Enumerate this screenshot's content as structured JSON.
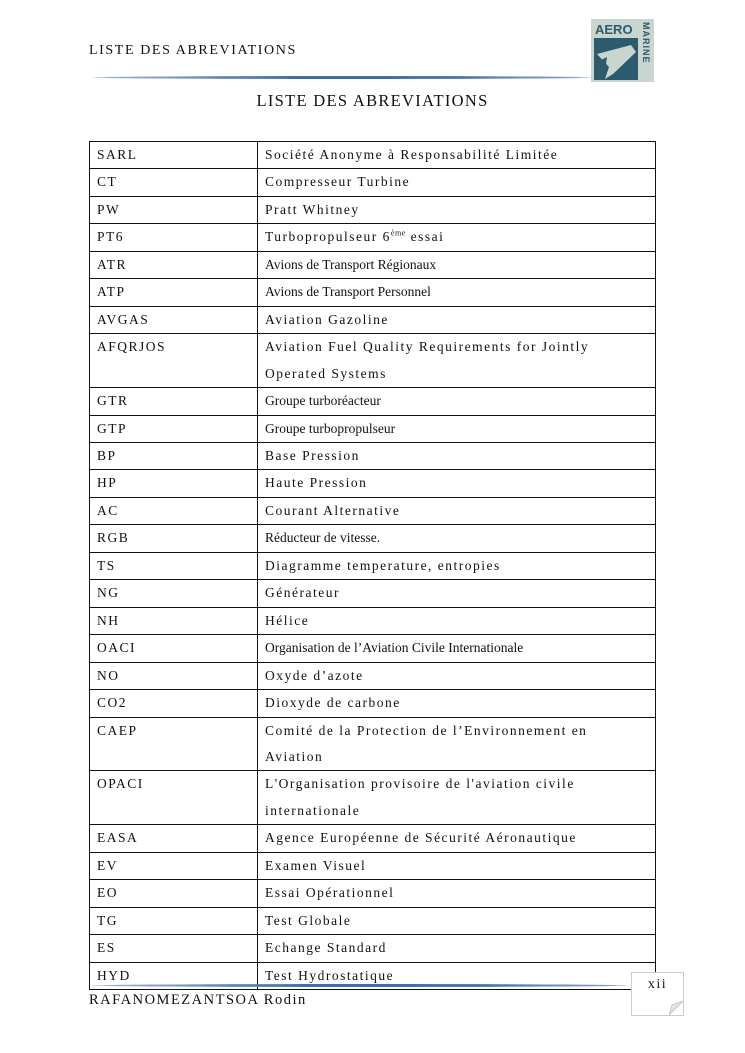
{
  "header": {
    "running_title": "LISTE DES ABREVIATIONS",
    "logo_text_top": "AERO",
    "logo_text_side": "MARINE"
  },
  "page_title": "LISTE DES ABREVIATIONS",
  "abbreviations": [
    {
      "abbr": "SARL",
      "def": "Société Anonyme à Responsabilité Limitée"
    },
    {
      "abbr": "CT",
      "def": "Compresseur Turbine"
    },
    {
      "abbr": "PW",
      "def": "Pratt Whitney"
    },
    {
      "abbr": "PT6",
      "def": "Turbopropulseur 6",
      "sup": "ème",
      "def_suffix": " essai"
    },
    {
      "abbr": "ATR",
      "def": "Avions de Transport Régionaux",
      "plain": true
    },
    {
      "abbr": "ATP",
      "def": "Avions de Transport Personnel",
      "plain": true
    },
    {
      "abbr": "AVGAS",
      "def": "Aviation Gazoline"
    },
    {
      "abbr": "AFQRJOS",
      "def": "Aviation Fuel Quality Requirements for Jointly",
      "def_line2": "Operated Systems"
    },
    {
      "abbr": "GTR",
      "def": "Groupe turboréacteur",
      "plain": true
    },
    {
      "abbr": "GTP",
      "def": "Groupe turbopropulseur",
      "plain": true
    },
    {
      "abbr": "BP",
      "def": "Base Pression"
    },
    {
      "abbr": "HP",
      "def": "Haute Pression"
    },
    {
      "abbr": "AC",
      "def": "Courant Alternative"
    },
    {
      "abbr": "RGB",
      "def": "Réducteur de vitesse.",
      "plain": true
    },
    {
      "abbr": "TS",
      "def": "Diagramme temperature, entropies"
    },
    {
      "abbr": "NG",
      "def": "Générateur"
    },
    {
      "abbr": "NH",
      "def": "Hélice"
    },
    {
      "abbr": "OACI",
      "def": "Organisation de l’Aviation Civile Internationale",
      "plain": true
    },
    {
      "abbr": "NO",
      "def": "Oxyde d’azote"
    },
    {
      "abbr": "CO2",
      "def": "Dioxyde de carbone"
    },
    {
      "abbr": "CAEP",
      "def": "Comité de la Protection de l’Environnement en",
      "def_line2": "Aviation"
    },
    {
      "abbr": "OPACI",
      "def": "L'Organisation provisoire de l'aviation civile",
      "def_line2": "internationale"
    },
    {
      "abbr": "EASA",
      "def": "Agence Européenne de Sécurité Aéronautique"
    },
    {
      "abbr": "EV",
      "def": "Examen Visuel"
    },
    {
      "abbr": "EO",
      "def": "Essai Opérationnel"
    },
    {
      "abbr": "TG",
      "def": "Test Globale"
    },
    {
      "abbr": "ES",
      "def": "Echange Standard"
    },
    {
      "abbr": "HYD",
      "def": "Test Hydrostatique"
    }
  ],
  "footer": {
    "author": "RAFANOMEZANTSOA Rodin",
    "page_number": "xii"
  },
  "colors": {
    "rule_blue": "#3d6fa8",
    "logo_bg": "#2e5a6e",
    "logo_light": "#c9d6cf"
  }
}
